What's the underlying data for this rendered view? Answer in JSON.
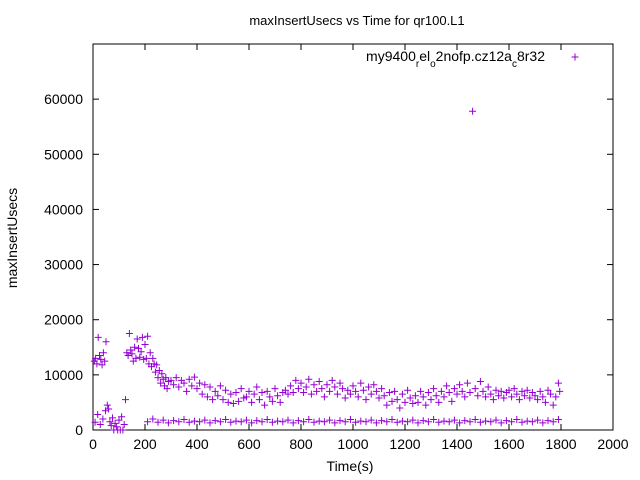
{
  "chart_data": {
    "type": "scatter",
    "title": "maxInsertUsecs vs Time for qr100.L1",
    "xlabel": "Time(s)",
    "ylabel": "maxInsertUsecs",
    "xlim": [
      0,
      2000
    ],
    "ylim": [
      0,
      70000
    ],
    "xticks": [
      0,
      200,
      400,
      600,
      800,
      1000,
      1200,
      1400,
      1600,
      1800,
      2000
    ],
    "yticks": [
      0,
      10000,
      20000,
      30000,
      40000,
      50000,
      60000
    ],
    "grid": false,
    "legend_position": "top-right",
    "marker": "+",
    "series": [
      {
        "name_parts": [
          {
            "text": "my9400",
            "sub": false
          },
          {
            "text": "r",
            "sub": true
          },
          {
            "text": "el",
            "sub": false
          },
          {
            "text": "o",
            "sub": true
          },
          {
            "text": "2nofp.cz12a",
            "sub": false
          },
          {
            "text": "c",
            "sub": true
          },
          {
            "text": "8r32",
            "sub": false
          }
        ],
        "color": "#9400d3",
        "points": [
          [
            5,
            12500
          ],
          [
            10,
            13000
          ],
          [
            15,
            12000
          ],
          [
            20,
            16800
          ],
          [
            25,
            13500
          ],
          [
            30,
            12800
          ],
          [
            35,
            11800
          ],
          [
            40,
            14000
          ],
          [
            45,
            12500
          ],
          [
            50,
            16000
          ],
          [
            8,
            1400
          ],
          [
            18,
            2800
          ],
          [
            28,
            1000
          ],
          [
            38,
            2000
          ],
          [
            48,
            3500
          ],
          [
            55,
            4500
          ],
          [
            60,
            3800
          ],
          [
            65,
            1500
          ],
          [
            70,
            800
          ],
          [
            75,
            2200
          ],
          [
            80,
            0
          ],
          [
            85,
            1200
          ],
          [
            90,
            600
          ],
          [
            95,
            0
          ],
          [
            100,
            1800
          ],
          [
            105,
            0
          ],
          [
            110,
            2400
          ],
          [
            115,
            0
          ],
          [
            120,
            1000
          ],
          [
            125,
            5500
          ],
          [
            130,
            14000
          ],
          [
            135,
            13500
          ],
          [
            140,
            17500
          ],
          [
            145,
            14500
          ],
          [
            150,
            13800
          ],
          [
            155,
            12500
          ],
          [
            160,
            15000
          ],
          [
            165,
            13000
          ],
          [
            170,
            16500
          ],
          [
            175,
            14800
          ],
          [
            180,
            13200
          ],
          [
            185,
            14200
          ],
          [
            190,
            16800
          ],
          [
            195,
            12800
          ],
          [
            200,
            15500
          ],
          [
            205,
            13000
          ],
          [
            210,
            17000
          ],
          [
            215,
            12000
          ],
          [
            220,
            14000
          ],
          [
            225,
            11500
          ],
          [
            230,
            13000
          ],
          [
            235,
            12000
          ],
          [
            240,
            10500
          ],
          [
            245,
            11800
          ],
          [
            250,
            9500
          ],
          [
            255,
            10800
          ],
          [
            260,
            8500
          ],
          [
            265,
            10200
          ],
          [
            270,
            9200
          ],
          [
            275,
            8000
          ],
          [
            280,
            9500
          ],
          [
            285,
            7500
          ],
          [
            290,
            8800
          ],
          [
            300,
            9000
          ],
          [
            310,
            8200
          ],
          [
            320,
            9500
          ],
          [
            330,
            7800
          ],
          [
            340,
            9000
          ],
          [
            350,
            8500
          ],
          [
            360,
            7000
          ],
          [
            370,
            9200
          ],
          [
            380,
            8000
          ],
          [
            390,
            9600
          ],
          [
            400,
            7500
          ],
          [
            410,
            8500
          ],
          [
            420,
            6500
          ],
          [
            430,
            8200
          ],
          [
            440,
            6000
          ],
          [
            450,
            7800
          ],
          [
            460,
            5500
          ],
          [
            470,
            7000
          ],
          [
            480,
            6200
          ],
          [
            490,
            8000
          ],
          [
            500,
            5500
          ],
          [
            510,
            7200
          ],
          [
            520,
            5000
          ],
          [
            530,
            6500
          ],
          [
            540,
            4800
          ],
          [
            550,
            6800
          ],
          [
            560,
            5200
          ],
          [
            570,
            7500
          ],
          [
            580,
            5800
          ],
          [
            590,
            6000
          ],
          [
            600,
            7000
          ],
          [
            610,
            5000
          ],
          [
            620,
            6500
          ],
          [
            630,
            7800
          ],
          [
            640,
            5500
          ],
          [
            650,
            6800
          ],
          [
            660,
            4500
          ],
          [
            670,
            7000
          ],
          [
            680,
            6000
          ],
          [
            690,
            5200
          ],
          [
            700,
            7500
          ],
          [
            710,
            6200
          ],
          [
            720,
            5000
          ],
          [
            730,
            6800
          ],
          [
            740,
            7200
          ],
          [
            750,
            6500
          ],
          [
            760,
            8000
          ],
          [
            770,
            6800
          ],
          [
            780,
            9000
          ],
          [
            790,
            7500
          ],
          [
            800,
            8500
          ],
          [
            810,
            6800
          ],
          [
            820,
            7800
          ],
          [
            830,
            9200
          ],
          [
            840,
            6500
          ],
          [
            850,
            8200
          ],
          [
            860,
            7000
          ],
          [
            870,
            8800
          ],
          [
            880,
            7500
          ],
          [
            890,
            6000
          ],
          [
            900,
            8200
          ],
          [
            910,
            7000
          ],
          [
            920,
            9000
          ],
          [
            930,
            7800
          ],
          [
            940,
            6500
          ],
          [
            950,
            8500
          ],
          [
            960,
            7500
          ],
          [
            970,
            5800
          ],
          [
            980,
            7200
          ],
          [
            990,
            6500
          ],
          [
            1000,
            8000
          ],
          [
            1010,
            7000
          ],
          [
            1020,
            6000
          ],
          [
            1030,
            8500
          ],
          [
            1040,
            7200
          ],
          [
            1050,
            5500
          ],
          [
            1060,
            7800
          ],
          [
            1070,
            6500
          ],
          [
            1080,
            8200
          ],
          [
            1090,
            7000
          ],
          [
            1100,
            5800
          ],
          [
            1110,
            7500
          ],
          [
            1120,
            6200
          ],
          [
            1130,
            4500
          ],
          [
            1140,
            6800
          ],
          [
            1150,
            5200
          ],
          [
            1160,
            7000
          ],
          [
            1170,
            5500
          ],
          [
            1180,
            4000
          ],
          [
            1190,
            6500
          ],
          [
            1200,
            5000
          ],
          [
            1210,
            7200
          ],
          [
            1220,
            5800
          ],
          [
            1230,
            4800
          ],
          [
            1240,
            6200
          ],
          [
            1250,
            5000
          ],
          [
            1260,
            7000
          ],
          [
            1270,
            6000
          ],
          [
            1280,
            4500
          ],
          [
            1290,
            6800
          ],
          [
            1300,
            5500
          ],
          [
            1310,
            7500
          ],
          [
            1320,
            6200
          ],
          [
            1330,
            5000
          ],
          [
            1340,
            7000
          ],
          [
            1350,
            6000
          ],
          [
            1360,
            8000
          ],
          [
            1370,
            6800
          ],
          [
            1380,
            5200
          ],
          [
            1390,
            7500
          ],
          [
            1400,
            6500
          ],
          [
            1410,
            8200
          ],
          [
            1420,
            7000
          ],
          [
            1430,
            6000
          ],
          [
            1440,
            8500
          ],
          [
            1450,
            6800
          ],
          [
            1460,
            57800
          ],
          [
            1470,
            7500
          ],
          [
            1480,
            6200
          ],
          [
            1490,
            8800
          ],
          [
            1500,
            7000
          ],
          [
            1510,
            6000
          ],
          [
            1520,
            7800
          ],
          [
            1530,
            6500
          ],
          [
            1540,
            5500
          ],
          [
            1550,
            7200
          ],
          [
            1560,
            6200
          ],
          [
            1570,
            7000
          ],
          [
            1580,
            5800
          ],
          [
            1590,
            6800
          ],
          [
            1600,
            7200
          ],
          [
            1610,
            6000
          ],
          [
            1620,
            7500
          ],
          [
            1630,
            6500
          ],
          [
            1640,
            5500
          ],
          [
            1650,
            7000
          ],
          [
            1660,
            6200
          ],
          [
            1670,
            7200
          ],
          [
            1680,
            5800
          ],
          [
            1690,
            6800
          ],
          [
            1700,
            6200
          ],
          [
            1710,
            5500
          ],
          [
            1720,
            7000
          ],
          [
            1730,
            6000
          ],
          [
            1740,
            5000
          ],
          [
            1750,
            7200
          ],
          [
            1760,
            6500
          ],
          [
            1770,
            4500
          ],
          [
            1780,
            6000
          ],
          [
            1790,
            8500
          ],
          [
            1795,
            7000
          ],
          [
            210,
            1500
          ],
          [
            230,
            2000
          ],
          [
            250,
            1400
          ],
          [
            270,
            1800
          ],
          [
            290,
            1300
          ],
          [
            310,
            1700
          ],
          [
            330,
            1500
          ],
          [
            350,
            1900
          ],
          [
            370,
            1400
          ],
          [
            390,
            1600
          ],
          [
            410,
            1500
          ],
          [
            430,
            1800
          ],
          [
            450,
            1300
          ],
          [
            470,
            1700
          ],
          [
            490,
            1500
          ],
          [
            510,
            1900
          ],
          [
            530,
            1400
          ],
          [
            550,
            1600
          ],
          [
            570,
            1500
          ],
          [
            590,
            1800
          ],
          [
            610,
            1300
          ],
          [
            630,
            1700
          ],
          [
            650,
            1500
          ],
          [
            670,
            1900
          ],
          [
            690,
            1400
          ],
          [
            710,
            1600
          ],
          [
            730,
            1500
          ],
          [
            750,
            1800
          ],
          [
            770,
            1300
          ],
          [
            790,
            1700
          ],
          [
            810,
            1500
          ],
          [
            830,
            1900
          ],
          [
            850,
            1400
          ],
          [
            870,
            1600
          ],
          [
            890,
            1500
          ],
          [
            910,
            1800
          ],
          [
            930,
            1300
          ],
          [
            950,
            1700
          ],
          [
            970,
            1500
          ],
          [
            990,
            1900
          ],
          [
            1010,
            1400
          ],
          [
            1030,
            1600
          ],
          [
            1050,
            1500
          ],
          [
            1070,
            1800
          ],
          [
            1090,
            1300
          ],
          [
            1110,
            1700
          ],
          [
            1130,
            1500
          ],
          [
            1150,
            1900
          ],
          [
            1170,
            1400
          ],
          [
            1190,
            1600
          ],
          [
            1210,
            1500
          ],
          [
            1230,
            1800
          ],
          [
            1250,
            1300
          ],
          [
            1270,
            1700
          ],
          [
            1290,
            1500
          ],
          [
            1310,
            1900
          ],
          [
            1330,
            1400
          ],
          [
            1350,
            1600
          ],
          [
            1370,
            1500
          ],
          [
            1390,
            1800
          ],
          [
            1410,
            1300
          ],
          [
            1430,
            1700
          ],
          [
            1450,
            1500
          ],
          [
            1470,
            1900
          ],
          [
            1490,
            1400
          ],
          [
            1510,
            1600
          ],
          [
            1530,
            1500
          ],
          [
            1550,
            1800
          ],
          [
            1570,
            1300
          ],
          [
            1590,
            1700
          ],
          [
            1610,
            1500
          ],
          [
            1630,
            1900
          ],
          [
            1650,
            1400
          ],
          [
            1670,
            1600
          ],
          [
            1690,
            1500
          ],
          [
            1710,
            1800
          ],
          [
            1730,
            1300
          ],
          [
            1750,
            1700
          ],
          [
            1770,
            1500
          ],
          [
            1790,
            1900
          ]
        ]
      }
    ]
  }
}
